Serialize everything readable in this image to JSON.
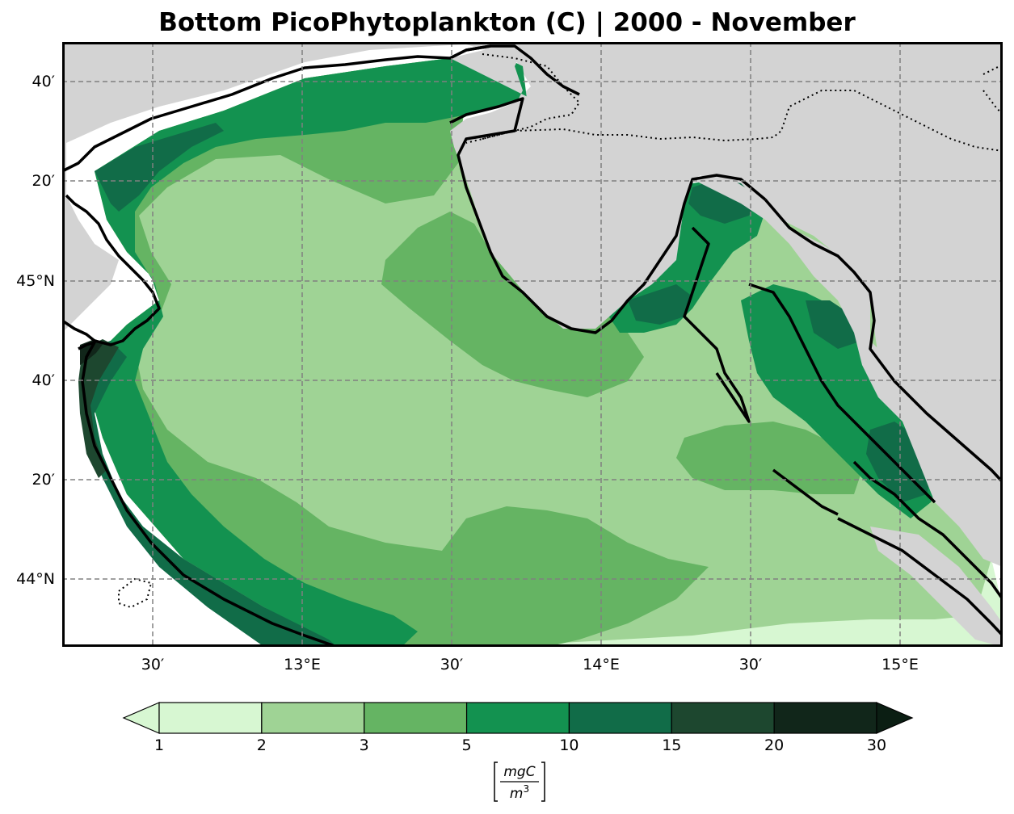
{
  "title": "Bottom PicoPhytoplankton (C) | 2000 - November",
  "axes": {
    "lat_ticks": [
      "40′",
      "20′",
      "45°N",
      "40′",
      "20′",
      "44°N"
    ],
    "lon_ticks": [
      "30′",
      "13°E",
      "30′",
      "14°E",
      "30′",
      "15°E"
    ]
  },
  "colorbar": {
    "levels": [
      "1",
      "2",
      "3",
      "5",
      "10",
      "15",
      "20",
      "30"
    ],
    "colors": [
      "#d7f7d2",
      "#9fd395",
      "#65b463",
      "#139250",
      "#116c48",
      "#1d472f",
      "#11261a",
      "#0b1e13"
    ],
    "under_color": "#d7f7d2",
    "over_color": "#0b1e13",
    "unit_numerator": "mgC",
    "unit_denominator": "m",
    "unit_exponent": "3"
  },
  "map_colors": {
    "land": "#d3d3d3",
    "nodata_sea": "#ffffff",
    "grid": "#808080",
    "coast": "#000000"
  }
}
